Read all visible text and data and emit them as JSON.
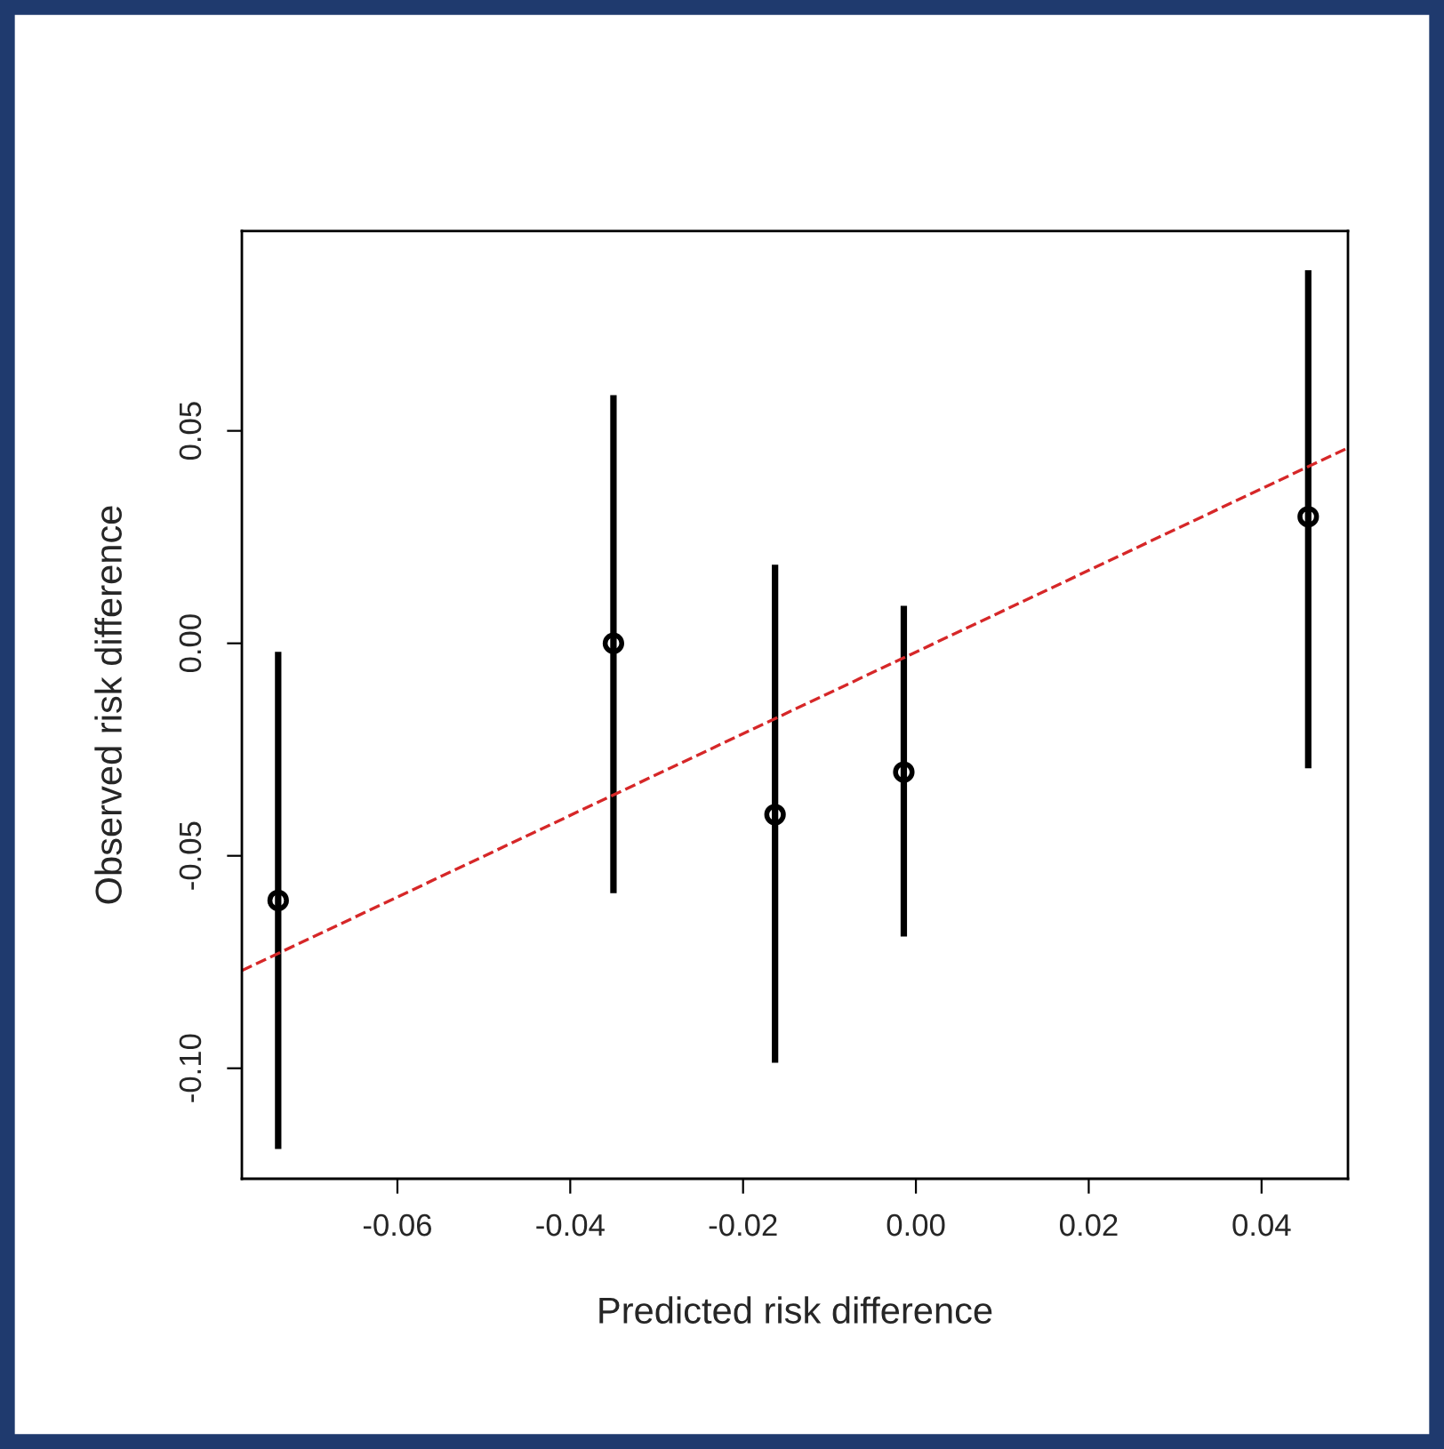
{
  "chart_data": {
    "type": "scatter",
    "xlabel": "Predicted risk difference",
    "ylabel": "Observed risk difference",
    "xlim": [
      -0.078,
      0.05
    ],
    "xticks": [
      {
        "value": -0.06,
        "label": "-0.06"
      },
      {
        "value": -0.04,
        "label": "-0.04"
      },
      {
        "value": -0.02,
        "label": "-0.02"
      },
      {
        "value": 0,
        "label": "0.00"
      },
      {
        "value": 0.02,
        "label": "0.02"
      },
      {
        "value": 0.04,
        "label": "0.04"
      }
    ],
    "ylim": [
      -0.126,
      0.097
    ],
    "yticks": [
      {
        "value": -0.1,
        "label": "-0.10"
      },
      {
        "value": -0.05,
        "label": "-0.05"
      },
      {
        "value": 0,
        "label": "0.00"
      },
      {
        "value": 0.05,
        "label": "0.05"
      }
    ],
    "grid": false,
    "legend": false,
    "series": [
      {
        "marker": "circle",
        "color": "#000000",
        "x": [
          -0.0738,
          -0.035,
          -0.0163,
          -0.0014,
          0.0454
        ],
        "values": [
          -0.0605,
          0,
          -0.0403,
          -0.0303,
          0.0298
        ],
        "errors": [
          [
            -0.119,
            -0.002
          ],
          [
            -0.0588,
            0.0584
          ],
          [
            -0.0987,
            0.0185
          ],
          [
            -0.069,
            0.0088
          ],
          [
            -0.0294,
            0.0878
          ]
        ]
      },
      {
        "type": "line",
        "color": "#d62728",
        "line_style": "dashed",
        "x": [
          -0.078,
          0.05
        ],
        "values": [
          -0.077,
          0.046
        ]
      }
    ]
  }
}
